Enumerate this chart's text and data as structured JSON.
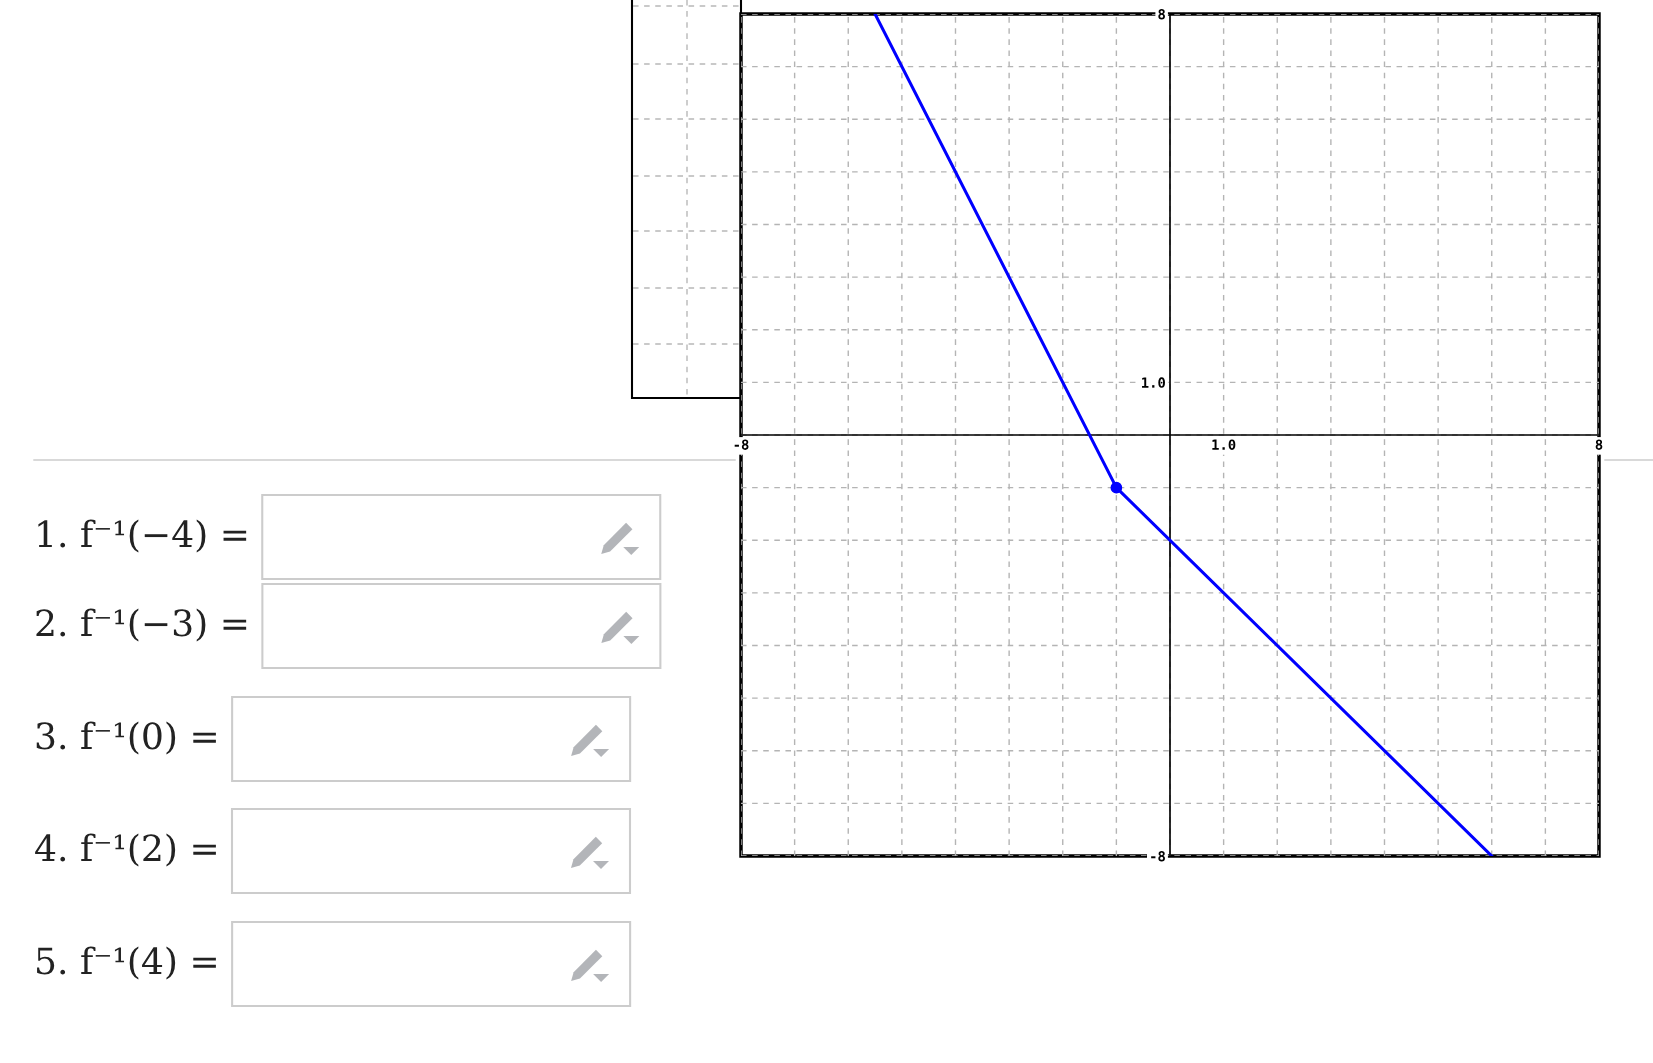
{
  "chart_data": {
    "type": "line",
    "series": [
      {
        "type": "line",
        "color": "#0000ff",
        "x": [
          -5.5,
          -1,
          6
        ],
        "values": [
          8,
          -1,
          -8
        ]
      },
      {
        "type": "scatter",
        "color": "#0000ff",
        "x": [
          -1
        ],
        "values": [
          -1
        ],
        "marker": "circle"
      }
    ],
    "xlim": [
      -8,
      8
    ],
    "ylim": [
      -8,
      8
    ],
    "xticks": [
      -8,
      {
        "value": -7,
        "label": null
      },
      {
        "value": -6,
        "label": null
      },
      {
        "value": -5,
        "label": null
      },
      {
        "value": -4,
        "label": null
      },
      {
        "value": -3,
        "label": null
      },
      {
        "value": -2,
        "label": null
      },
      {
        "value": -1,
        "label": null
      },
      {
        "value": 0,
        "label": null
      },
      {
        "value": 1,
        "label": "1.0"
      },
      {
        "value": 2,
        "label": null
      },
      {
        "value": 3,
        "label": null
      },
      {
        "value": 4,
        "label": null
      },
      {
        "value": 5,
        "label": null
      },
      {
        "value": 6,
        "label": null
      },
      {
        "value": 7,
        "label": null
      },
      8
    ],
    "yticks": [
      -8,
      {
        "value": -7,
        "label": null
      },
      {
        "value": -6,
        "label": null
      },
      {
        "value": -5,
        "label": null
      },
      {
        "value": -4,
        "label": null
      },
      {
        "value": -3,
        "label": null
      },
      {
        "value": -2,
        "label": null
      },
      {
        "value": -1,
        "label": null
      },
      {
        "value": 0,
        "label": null
      },
      {
        "value": 1,
        "label": "1.0"
      },
      {
        "value": 2,
        "label": null
      },
      {
        "value": 3,
        "label": null
      },
      {
        "value": 4,
        "label": null
      },
      {
        "value": 5,
        "label": null
      },
      {
        "value": 6,
        "label": null
      },
      {
        "value": 7,
        "label": null
      },
      8
    ],
    "grid": true,
    "annotations": [
      "1. f⁻¹(−4) =",
      "2. f⁻¹(−3) =",
      "3. f⁻¹(0) =",
      "4. f⁻¹(2) =",
      "5. f⁻¹(4) ="
    ]
  }
}
